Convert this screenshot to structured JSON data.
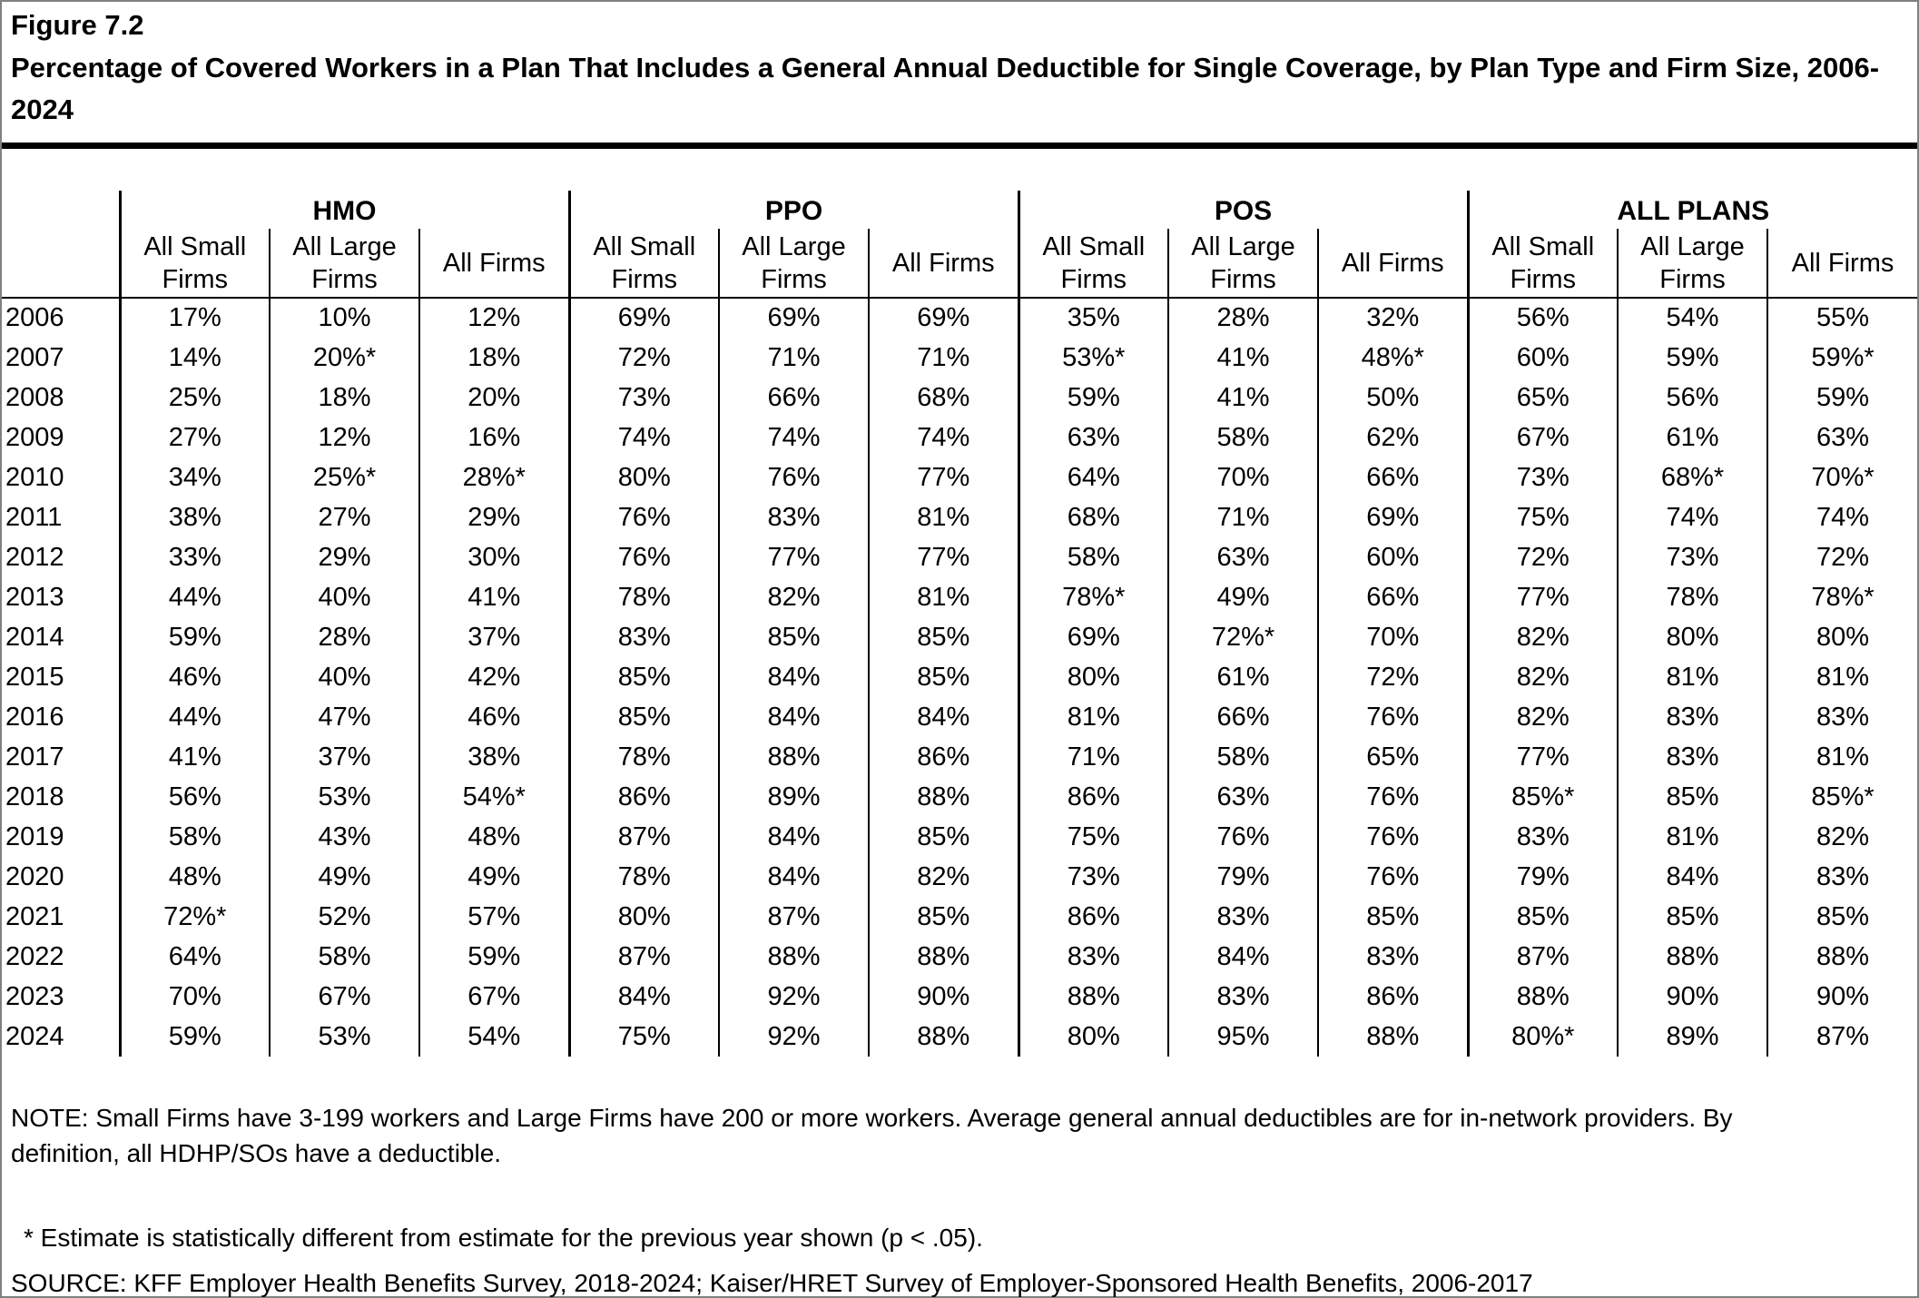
{
  "figure": {
    "label": "Figure 7.2",
    "title": "Percentage of Covered Workers in a Plan That Includes a General Annual Deductible for Single Coverage, by Plan Type and Firm Size, 2006-2024"
  },
  "table": {
    "groups": [
      {
        "label": "HMO"
      },
      {
        "label": "PPO"
      },
      {
        "label": "POS"
      },
      {
        "label": "ALL PLANS"
      }
    ],
    "subheaders": [
      "All Small Firms",
      "All Large Firms",
      "All Firms"
    ],
    "rows": [
      {
        "year": "2006",
        "values": [
          "17%",
          "10%",
          "12%",
          "69%",
          "69%",
          "69%",
          "35%",
          "28%",
          "32%",
          "56%",
          "54%",
          "55%"
        ]
      },
      {
        "year": "2007",
        "values": [
          "14%",
          "20%*",
          "18%",
          "72%",
          "71%",
          "71%",
          "53%*",
          "41%",
          "48%*",
          "60%",
          "59%",
          "59%*"
        ]
      },
      {
        "year": "2008",
        "values": [
          "25%",
          "18%",
          "20%",
          "73%",
          "66%",
          "68%",
          "59%",
          "41%",
          "50%",
          "65%",
          "56%",
          "59%"
        ]
      },
      {
        "year": "2009",
        "values": [
          "27%",
          "12%",
          "16%",
          "74%",
          "74%",
          "74%",
          "63%",
          "58%",
          "62%",
          "67%",
          "61%",
          "63%"
        ]
      },
      {
        "year": "2010",
        "values": [
          "34%",
          "25%*",
          "28%*",
          "80%",
          "76%",
          "77%",
          "64%",
          "70%",
          "66%",
          "73%",
          "68%*",
          "70%*"
        ]
      },
      {
        "year": "2011",
        "values": [
          "38%",
          "27%",
          "29%",
          "76%",
          "83%",
          "81%",
          "68%",
          "71%",
          "69%",
          "75%",
          "74%",
          "74%"
        ]
      },
      {
        "year": "2012",
        "values": [
          "33%",
          "29%",
          "30%",
          "76%",
          "77%",
          "77%",
          "58%",
          "63%",
          "60%",
          "72%",
          "73%",
          "72%"
        ]
      },
      {
        "year": "2013",
        "values": [
          "44%",
          "40%",
          "41%",
          "78%",
          "82%",
          "81%",
          "78%*",
          "49%",
          "66%",
          "77%",
          "78%",
          "78%*"
        ]
      },
      {
        "year": "2014",
        "values": [
          "59%",
          "28%",
          "37%",
          "83%",
          "85%",
          "85%",
          "69%",
          "72%*",
          "70%",
          "82%",
          "80%",
          "80%"
        ]
      },
      {
        "year": "2015",
        "values": [
          "46%",
          "40%",
          "42%",
          "85%",
          "84%",
          "85%",
          "80%",
          "61%",
          "72%",
          "82%",
          "81%",
          "81%"
        ]
      },
      {
        "year": "2016",
        "values": [
          "44%",
          "47%",
          "46%",
          "85%",
          "84%",
          "84%",
          "81%",
          "66%",
          "76%",
          "82%",
          "83%",
          "83%"
        ]
      },
      {
        "year": "2017",
        "values": [
          "41%",
          "37%",
          "38%",
          "78%",
          "88%",
          "86%",
          "71%",
          "58%",
          "65%",
          "77%",
          "83%",
          "81%"
        ]
      },
      {
        "year": "2018",
        "values": [
          "56%",
          "53%",
          "54%*",
          "86%",
          "89%",
          "88%",
          "86%",
          "63%",
          "76%",
          "85%*",
          "85%",
          "85%*"
        ]
      },
      {
        "year": "2019",
        "values": [
          "58%",
          "43%",
          "48%",
          "87%",
          "84%",
          "85%",
          "75%",
          "76%",
          "76%",
          "83%",
          "81%",
          "82%"
        ]
      },
      {
        "year": "2020",
        "values": [
          "48%",
          "49%",
          "49%",
          "78%",
          "84%",
          "82%",
          "73%",
          "79%",
          "76%",
          "79%",
          "84%",
          "83%"
        ]
      },
      {
        "year": "2021",
        "values": [
          "72%*",
          "52%",
          "57%",
          "80%",
          "87%",
          "85%",
          "86%",
          "83%",
          "85%",
          "85%",
          "85%",
          "85%"
        ]
      },
      {
        "year": "2022",
        "values": [
          "64%",
          "58%",
          "59%",
          "87%",
          "88%",
          "88%",
          "83%",
          "84%",
          "83%",
          "87%",
          "88%",
          "88%"
        ]
      },
      {
        "year": "2023",
        "values": [
          "70%",
          "67%",
          "67%",
          "84%",
          "92%",
          "90%",
          "88%",
          "83%",
          "86%",
          "88%",
          "90%",
          "90%"
        ]
      },
      {
        "year": "2024",
        "values": [
          "59%",
          "53%",
          "54%",
          "75%",
          "92%",
          "88%",
          "80%",
          "95%",
          "88%",
          "80%*",
          "89%",
          "87%"
        ]
      }
    ]
  },
  "notes": {
    "note": "NOTE: Small Firms have 3-199 workers and Large Firms have 200 or more workers. Average general annual deductibles are for in-network providers. By definition, all HDHP/SOs have a deductible.",
    "asterisk": "* Estimate is statistically different from estimate for the previous year shown (p < .05).",
    "source": "SOURCE: KFF Employer Health Benefits Survey, 2018-2024; Kaiser/HRET Survey of Employer-Sponsored Health Benefits, 2006-2017"
  }
}
